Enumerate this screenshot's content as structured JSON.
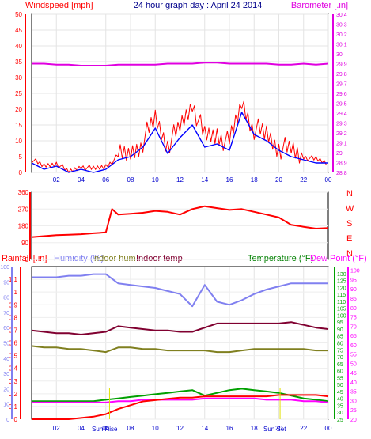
{
  "title": "24 hour graph day : April 24 2014",
  "colors": {
    "background": "#ffffff",
    "axis_left": "#ff0000",
    "axis_right_baro": "#e000e0",
    "wind_primary": "#ff0000",
    "wind_secondary": "#0000ff",
    "barometer": "#e000e0",
    "direction": "#ff0000",
    "humidity": "#8080f0",
    "indoor_hum": "#808020",
    "indoor_temp": "#800030",
    "temperature": "#00a000",
    "dewpoint": "#ff00ff",
    "rainfall": "#ff0000",
    "yellow_marker": "#e0e000",
    "frame": "#000000"
  },
  "x_tick_labels": [
    "02",
    "04",
    "06",
    "08",
    "10",
    "12",
    "14",
    "16",
    "18",
    "20",
    "22",
    "00"
  ],
  "bottom_annotations": [
    "Sun Rise",
    "Sun Set"
  ],
  "chart_data": [
    {
      "type": "line",
      "title": "24 hour graph day : April 24 2014",
      "left_label": "Windspeed [mph]",
      "right_label": "Barometer [.in]",
      "x": [
        0,
        1,
        2,
        3,
        4,
        5,
        6,
        7,
        8,
        9,
        10,
        11,
        12,
        13,
        14,
        15,
        16,
        17,
        18,
        19,
        20,
        21,
        22,
        23,
        24
      ],
      "y_left_ticks": [
        "0",
        "5",
        "10",
        "15",
        "20",
        "25",
        "30",
        "35",
        "40",
        "45",
        "50"
      ],
      "y_left_range": [
        0,
        50
      ],
      "y_right_ticks": [
        "28.8",
        "28.9",
        "29",
        "29.1",
        "29.2",
        "29.3",
        "29.4",
        "29.5",
        "29.6",
        "29.7",
        "29.8",
        "29.9",
        "30",
        "30.1",
        "30.2",
        "30.3",
        "30.4"
      ],
      "y_right_range": [
        28.8,
        30.4
      ],
      "series": [
        {
          "name": "Windspeed [mph]",
          "axis": "left",
          "values": [
            4,
            2,
            3,
            0,
            2,
            1,
            2,
            5,
            6,
            10,
            17,
            9,
            14,
            22,
            11,
            12,
            9,
            22,
            14,
            12,
            8,
            7,
            5,
            4,
            3
          ]
        },
        {
          "name": "",
          "axis": "left",
          "values": [
            3,
            1,
            2,
            0,
            1,
            0,
            1,
            4,
            5,
            8,
            14,
            6,
            11,
            15,
            8,
            9,
            7,
            19,
            12,
            10,
            7,
            5,
            4,
            3,
            3
          ]
        },
        {
          "name": "Barometer [.in]",
          "axis": "right",
          "values": [
            29.9,
            29.9,
            29.89,
            29.89,
            29.88,
            29.88,
            29.88,
            29.89,
            29.89,
            29.89,
            29.89,
            29.9,
            29.9,
            29.9,
            29.91,
            29.91,
            29.9,
            29.9,
            29.9,
            29.9,
            29.89,
            29.89,
            29.9,
            29.89,
            29.9
          ]
        }
      ]
    },
    {
      "type": "line",
      "title": "",
      "x": [
        0,
        1,
        2,
        3,
        4,
        5,
        6,
        6.5,
        7,
        8,
        9,
        10,
        11,
        12,
        13,
        14,
        15,
        16,
        17,
        18,
        19,
        20,
        21,
        22,
        23,
        24
      ],
      "y_left_ticks": [
        "0",
        "90",
        "180",
        "270",
        "360"
      ],
      "y_left_range": [
        0,
        360
      ],
      "y_right_ticks": [
        "N",
        "W",
        "S",
        "E",
        "N"
      ],
      "series": [
        {
          "name": "",
          "values": [
            120,
            125,
            130,
            132,
            135,
            140,
            145,
            270,
            240,
            245,
            250,
            260,
            255,
            240,
            270,
            285,
            275,
            265,
            270,
            255,
            240,
            225,
            185,
            175,
            165,
            168
          ]
        }
      ]
    },
    {
      "type": "line",
      "title": "",
      "x": [
        0,
        1,
        2,
        3,
        4,
        5,
        6,
        7,
        8,
        9,
        10,
        11,
        12,
        13,
        14,
        15,
        16,
        17,
        18,
        19,
        20,
        21,
        22,
        23,
        24
      ],
      "y_left_ticks": [
        "0",
        "0.1",
        "0.2",
        "0.3",
        "0.4",
        "0.5",
        "0.6",
        "0.7",
        "0.8",
        "0.9",
        "1",
        "1.1"
      ],
      "y_left_range": [
        0,
        1.2
      ],
      "y_humidity_ticks": [
        "0",
        "10",
        "20",
        "30",
        "40",
        "50",
        "60",
        "70",
        "80",
        "90",
        "100"
      ],
      "y_humidity_range": [
        0,
        100
      ],
      "y_temp_ticks": [
        "25",
        "30",
        "35",
        "40",
        "45",
        "50",
        "55",
        "60",
        "65",
        "70",
        "75",
        "80",
        "85",
        "90",
        "95",
        "100",
        "105",
        "110",
        "115",
        "120",
        "125",
        "130"
      ],
      "y_temp_range": [
        25,
        135
      ],
      "y_dew_ticks": [
        "20",
        "25",
        "30",
        "35",
        "40",
        "45",
        "50",
        "55",
        "60",
        "65",
        "70",
        "75",
        "80",
        "85",
        "90",
        "95",
        "100"
      ],
      "y_dew_range": [
        20,
        102
      ],
      "legend_labels": [
        "Rainfall [.in]",
        "Humidity (%)",
        "Indoor hum",
        "Indoor temp",
        "Temperature (°F)",
        "Dew Point (°F)"
      ],
      "series": [
        {
          "name": "Humidity (%)",
          "values": [
            93,
            93,
            93,
            94,
            94,
            95,
            95,
            89,
            88,
            87,
            86,
            84,
            82,
            74,
            88,
            77,
            75,
            78,
            82,
            85,
            87,
            89,
            89,
            89,
            89
          ]
        },
        {
          "name": "Indoor hum",
          "values": [
            48,
            47,
            47,
            46,
            46,
            45,
            44,
            47,
            47,
            46,
            46,
            45,
            45,
            45,
            45,
            44,
            44,
            45,
            46,
            46,
            46,
            46,
            46,
            45,
            45
          ]
        },
        {
          "name": "Indoor temp",
          "values": [
            89,
            88,
            87,
            87,
            86,
            87,
            88,
            92,
            91,
            90,
            89,
            89,
            88,
            88,
            91,
            94,
            94,
            94,
            94,
            94,
            94,
            95,
            93,
            91,
            90
          ]
        },
        {
          "name": "Temperature (°F)",
          "values": [
            38,
            38,
            38,
            38,
            38,
            38,
            39,
            40,
            41,
            42,
            43,
            44,
            45,
            46,
            42,
            44,
            46,
            47,
            46,
            45,
            44,
            42,
            40,
            39,
            38
          ]
        },
        {
          "name": "Dew Point (°F)",
          "values": [
            37,
            37,
            37,
            37,
            37,
            37,
            37,
            38,
            38,
            39,
            39,
            39,
            39,
            39,
            40,
            40,
            40,
            40,
            40,
            39,
            39,
            39,
            38,
            38,
            37
          ]
        },
        {
          "name": "Rainfall [.in]",
          "values": [
            0,
            0,
            0,
            0,
            0.01,
            0.02,
            0.04,
            0.08,
            0.11,
            0.14,
            0.15,
            0.16,
            0.17,
            0.17,
            0.18,
            0.18,
            0.18,
            0.18,
            0.18,
            0.18,
            0.19,
            0.19,
            0.19,
            0.19,
            0.18
          ]
        }
      ]
    }
  ]
}
